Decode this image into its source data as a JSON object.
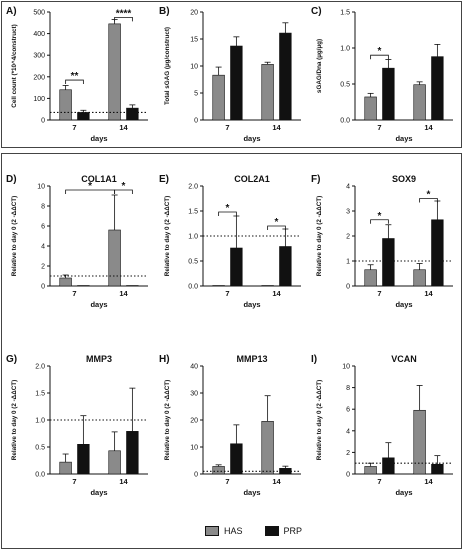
{
  "legend": {
    "has": "HAS",
    "prp": "PRP"
  },
  "colors": {
    "has": "#8a8a8a",
    "prp": "#111111"
  },
  "chart_data": [
    {
      "id": "A",
      "letter": "A)",
      "type": "bar",
      "title": "",
      "ylabel": "Cell count (*10^4/construct)",
      "xlabel": "days",
      "categories": [
        "7",
        "14"
      ],
      "ylim": [
        0,
        500
      ],
      "yticks": [
        0,
        100,
        200,
        300,
        400,
        500
      ],
      "series": [
        {
          "name": "HAS",
          "values": [
            140,
            445
          ],
          "errors": [
            20,
            20
          ]
        },
        {
          "name": "PRP",
          "values": [
            35,
            55
          ],
          "errors": [
            10,
            15
          ]
        }
      ],
      "dotted_line": 35,
      "sig": [
        {
          "label": "**",
          "from": [
            0,
            0
          ],
          "to": [
            0,
            1
          ],
          "y": 185
        },
        {
          "label": "****",
          "from": [
            1,
            0
          ],
          "to": [
            1,
            1
          ],
          "y": 475
        }
      ]
    },
    {
      "id": "B",
      "letter": "B)",
      "type": "bar",
      "title": "",
      "ylabel": "Total sGAG (µg/construct)",
      "xlabel": "days",
      "categories": [
        "7",
        "14"
      ],
      "ylim": [
        0,
        20
      ],
      "yticks": [
        0,
        5,
        10,
        15,
        20
      ],
      "series": [
        {
          "name": "HAS",
          "values": [
            8.3,
            10.3
          ],
          "errors": [
            1.5,
            0.4
          ]
        },
        {
          "name": "PRP",
          "values": [
            13.7,
            16.1
          ],
          "errors": [
            1.7,
            1.9
          ]
        }
      ],
      "sig": []
    },
    {
      "id": "C",
      "letter": "C)",
      "type": "bar",
      "title": "",
      "ylabel": "sGAG/Dna (µg/µg)",
      "xlabel": "days",
      "categories": [
        "7",
        "14"
      ],
      "ylim": [
        0,
        1.5
      ],
      "yticks": [
        0,
        0.5,
        1.0,
        1.5
      ],
      "series": [
        {
          "name": "HAS",
          "values": [
            0.32,
            0.49
          ],
          "errors": [
            0.05,
            0.04
          ]
        },
        {
          "name": "PRP",
          "values": [
            0.72,
            0.88
          ],
          "errors": [
            0.12,
            0.17
          ]
        }
      ],
      "sig": [
        {
          "label": "*",
          "from": [
            0,
            0
          ],
          "to": [
            0,
            1
          ],
          "y": 0.9
        }
      ]
    },
    {
      "id": "D",
      "letter": "D)",
      "type": "bar",
      "title": "COL1A1",
      "ylabel": "Relative to day 0 (2 -ΔΔCT)",
      "xlabel": "days",
      "categories": [
        "7",
        "14"
      ],
      "ylim": [
        0,
        10
      ],
      "yticks": [
        0,
        2,
        4,
        6,
        8,
        10
      ],
      "series": [
        {
          "name": "HAS",
          "values": [
            0.8,
            5.6
          ],
          "errors": [
            0.3,
            3.5
          ]
        },
        {
          "name": "PRP",
          "values": [
            0.05,
            0.05
          ],
          "errors": [
            0,
            0
          ]
        }
      ],
      "dotted_line": 1,
      "sig": [
        {
          "label": "*",
          "from": [
            0,
            0
          ],
          "to": [
            1,
            0
          ],
          "y": 9.6
        },
        {
          "label": "*",
          "from": [
            1,
            0
          ],
          "to": [
            1,
            1
          ],
          "y": 9.6
        }
      ]
    },
    {
      "id": "E",
      "letter": "E)",
      "type": "bar",
      "title": "COL2A1",
      "ylabel": "Relative to day 0 (2 -ΔΔCT)",
      "xlabel": "days",
      "categories": [
        "7",
        "14"
      ],
      "ylim": [
        0,
        2.0
      ],
      "yticks": [
        0.0,
        0.5,
        1.0,
        1.5,
        2.0
      ],
      "series": [
        {
          "name": "HAS",
          "values": [
            0.01,
            0.01
          ],
          "errors": [
            0,
            0
          ]
        },
        {
          "name": "PRP",
          "values": [
            0.76,
            0.79
          ],
          "errors": [
            0.64,
            0.35
          ]
        }
      ],
      "dotted_line": 1.0,
      "sig": [
        {
          "label": "*",
          "from": [
            0,
            0
          ],
          "to": [
            0,
            1
          ],
          "y": 1.48
        },
        {
          "label": "*",
          "from": [
            1,
            0
          ],
          "to": [
            1,
            1
          ],
          "y": 1.2
        }
      ]
    },
    {
      "id": "F",
      "letter": "F)",
      "type": "bar",
      "title": "SOX9",
      "ylabel": "Relative to day 0 (2 -ΔΔCT)",
      "xlabel": "days",
      "categories": [
        "7",
        "14"
      ],
      "ylim": [
        0,
        4
      ],
      "yticks": [
        0,
        1,
        2,
        3,
        4
      ],
      "series": [
        {
          "name": "HAS",
          "values": [
            0.65,
            0.65
          ],
          "errors": [
            0.2,
            0.25
          ]
        },
        {
          "name": "PRP",
          "values": [
            1.9,
            2.65
          ],
          "errors": [
            0.55,
            0.75
          ]
        }
      ],
      "dotted_line": 1,
      "sig": [
        {
          "label": "*",
          "from": [
            0,
            0
          ],
          "to": [
            0,
            1
          ],
          "y": 2.65
        },
        {
          "label": "*",
          "from": [
            1,
            0
          ],
          "to": [
            1,
            1
          ],
          "y": 3.5
        }
      ]
    },
    {
      "id": "G",
      "letter": "G)",
      "type": "bar",
      "title": "MMP3",
      "ylabel": "Relative to day 0 (2 -ΔΔCT)",
      "xlabel": "days",
      "categories": [
        "7",
        "14"
      ],
      "ylim": [
        0,
        2.0
      ],
      "yticks": [
        0.0,
        0.5,
        1.0,
        1.5,
        2.0
      ],
      "series": [
        {
          "name": "HAS",
          "values": [
            0.22,
            0.43
          ],
          "errors": [
            0.15,
            0.35
          ]
        },
        {
          "name": "PRP",
          "values": [
            0.55,
            0.79
          ],
          "errors": [
            0.53,
            0.8
          ]
        }
      ],
      "dotted_line": 1.0,
      "sig": []
    },
    {
      "id": "H",
      "letter": "H)",
      "type": "bar",
      "title": "MMP13",
      "ylabel": "Relative to day 0 (2 -ΔΔCT)",
      "xlabel": "days",
      "categories": [
        "7",
        "14"
      ],
      "ylim": [
        0,
        40
      ],
      "yticks": [
        0,
        10,
        20,
        30,
        40
      ],
      "series": [
        {
          "name": "HAS",
          "values": [
            2.8,
            19.5
          ],
          "errors": [
            0.6,
            9.5
          ]
        },
        {
          "name": "PRP",
          "values": [
            11.2,
            2.1
          ],
          "errors": [
            7,
            0.8
          ]
        }
      ],
      "dotted_line": 1,
      "sig": []
    },
    {
      "id": "I",
      "letter": "I)",
      "type": "bar",
      "title": "VCAN",
      "ylabel": "Relative to day 0 (2 -ΔΔCT)",
      "xlabel": "days",
      "categories": [
        "7",
        "14"
      ],
      "ylim": [
        0,
        10
      ],
      "yticks": [
        0,
        2,
        4,
        6,
        8,
        10
      ],
      "series": [
        {
          "name": "HAS",
          "values": [
            0.7,
            5.9
          ],
          "errors": [
            0.3,
            2.3
          ]
        },
        {
          "name": "PRP",
          "values": [
            1.5,
            0.9
          ],
          "errors": [
            1.4,
            0.8
          ]
        }
      ],
      "dotted_line": 1,
      "sig": []
    }
  ]
}
